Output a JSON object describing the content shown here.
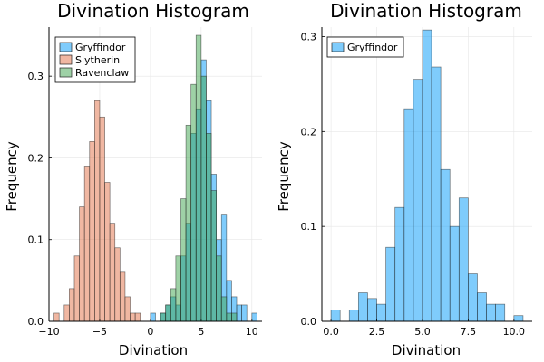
{
  "colors": {
    "Gryffindor": "#009af9",
    "Slytherin": "#e26f46",
    "Ravenclaw": "#3da44d"
  },
  "chart_data": [
    {
      "type": "bar",
      "title": "Divination Histogram",
      "xlabel": "Divination",
      "ylabel": "Frequency",
      "xlim": [
        -10,
        11
      ],
      "ylim": [
        0,
        0.36
      ],
      "xticks": [
        -10,
        -5,
        0,
        5,
        10
      ],
      "xtick_labels": [
        "−10",
        "−5",
        "0",
        "5",
        "10"
      ],
      "yticks": [
        0,
        0.1,
        0.2,
        0.3
      ],
      "ytick_labels": [
        "0.0",
        "0.1",
        "0.2",
        "0.3"
      ],
      "grid": true,
      "legend_position": "top-left",
      "bin_width": 0.5,
      "series": [
        {
          "name": "Gryffindor",
          "bin_starts": [
            0,
            0.5,
            1,
            1.5,
            2,
            2.5,
            3,
            3.5,
            4,
            4.5,
            5,
            5.5,
            6,
            6.5,
            7,
            7.5,
            8,
            8.5,
            9,
            9.5,
            10
          ],
          "values": [
            0.01,
            0,
            0.01,
            0.02,
            0.03,
            0.02,
            0.08,
            0.12,
            0.23,
            0.26,
            0.32,
            0.27,
            0.18,
            0.1,
            0.13,
            0.05,
            0.03,
            0.02,
            0.02,
            0,
            0.01
          ]
        },
        {
          "name": "Slytherin",
          "bin_starts": [
            -9.5,
            -9,
            -8.5,
            -8,
            -7.5,
            -7,
            -6.5,
            -6,
            -5.5,
            -5,
            -4.5,
            -4,
            -3.5,
            -3,
            -2.5,
            -2,
            -1.5
          ],
          "values": [
            0.01,
            0,
            0.02,
            0.04,
            0.08,
            0.14,
            0.19,
            0.22,
            0.27,
            0.25,
            0.17,
            0.12,
            0.09,
            0.06,
            0.03,
            0.01,
            0.01
          ]
        },
        {
          "name": "Ravenclaw",
          "bin_starts": [
            1,
            1.5,
            2,
            2.5,
            3,
            3.5,
            4,
            4.5,
            5,
            5.5,
            6,
            6.5,
            7,
            7.5,
            8
          ],
          "values": [
            0.01,
            0.02,
            0.04,
            0.08,
            0.15,
            0.24,
            0.29,
            0.35,
            0.3,
            0.23,
            0.16,
            0.08,
            0.03,
            0.01,
            0.01
          ]
        }
      ]
    },
    {
      "type": "bar",
      "title": "Divination Histogram",
      "xlabel": "Divination",
      "ylabel": "Frequency",
      "xlim": [
        -0.5,
        11
      ],
      "ylim": [
        0,
        0.31
      ],
      "xticks": [
        0,
        2.5,
        5,
        7.5,
        10
      ],
      "xtick_labels": [
        "0.0",
        "2.5",
        "5.0",
        "7.5",
        "10.0"
      ],
      "yticks": [
        0,
        0.1,
        0.2,
        0.3
      ],
      "ytick_labels": [
        "0.0",
        "0.1",
        "0.2",
        "0.3"
      ],
      "grid": true,
      "legend_position": "top-left",
      "bin_width": 0.5,
      "series": [
        {
          "name": "Gryffindor",
          "bin_starts": [
            0,
            0.5,
            1,
            1.5,
            2,
            2.5,
            3,
            3.5,
            4,
            4.5,
            5,
            5.5,
            6,
            6.5,
            7,
            7.5,
            8,
            8.5,
            9,
            9.5,
            10
          ],
          "values": [
            0.012,
            0,
            0.012,
            0.03,
            0.024,
            0.018,
            0.078,
            0.12,
            0.224,
            0.255,
            0.307,
            0.268,
            0.16,
            0.1,
            0.13,
            0.05,
            0.03,
            0.018,
            0.018,
            0,
            0.006
          ]
        }
      ]
    }
  ]
}
